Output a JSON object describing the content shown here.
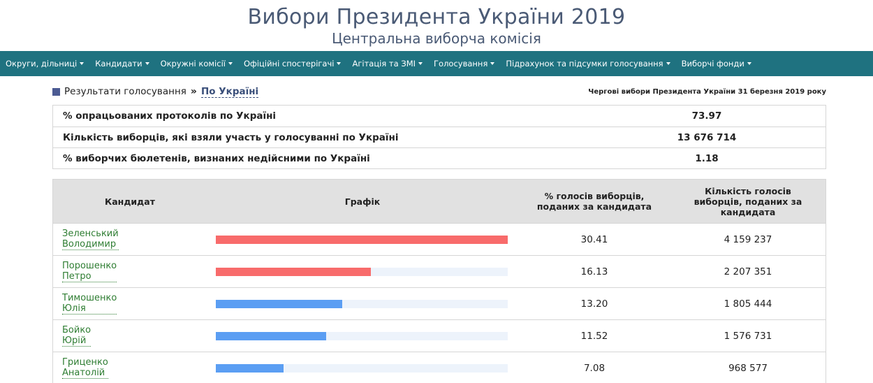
{
  "header": {
    "title": "Вибори Президента України 2019",
    "subtitle": "Центральна виборча комісія"
  },
  "nav": {
    "items": [
      "Округи, дільниці",
      "Кандидати",
      "Окружні комісії",
      "Офіційні спостерігачі",
      "Агітація та ЗМІ",
      "Голосування",
      "Підрахунок та підсумки голосування",
      "Виборчі фонди"
    ]
  },
  "breadcrumb": {
    "section": "Результати голосування",
    "separator": "»",
    "current": "По Україні",
    "election": "Чергові вибори Президента України 31 березня 2019 року"
  },
  "summary": [
    {
      "label": "% опрацьованих протоколів по Україні",
      "value": "73.97"
    },
    {
      "label": "Кількість виборців, які взяли участь у голосуванні по Україні",
      "value": "13 676 714"
    },
    {
      "label": "% виборчих бюлетенів, визнаних недійсними по Україні",
      "value": "1.18"
    }
  ],
  "results": {
    "headers": {
      "candidate": "Кандидат",
      "chart": "Графік",
      "percent": "% голосів виборців, поданих за кандидата",
      "votes": "Кількість голосів виборців, поданих за кандидата"
    },
    "colors": {
      "leading": "#f86b6b",
      "other": "#5b9ef3",
      "track": "#edf3fb"
    },
    "rows": [
      {
        "surname": "Зеленський",
        "name": "Володимир",
        "percent": "30.41",
        "votes": "4 159 237",
        "bar_fraction": 1.0,
        "bar_color": "leading"
      },
      {
        "surname": "Порошенко",
        "name": "Петро",
        "percent": "16.13",
        "votes": "2 207 351",
        "bar_fraction": 0.53,
        "bar_color": "leading"
      },
      {
        "surname": "Тимошенко",
        "name": "Юлія",
        "percent": "13.20",
        "votes": "1 805 444",
        "bar_fraction": 0.434,
        "bar_color": "other"
      },
      {
        "surname": "Бойко",
        "name": "Юрій",
        "percent": "11.52",
        "votes": "1 576 731",
        "bar_fraction": 0.379,
        "bar_color": "other"
      },
      {
        "surname": "Гриценко",
        "name": "Анатолій",
        "percent": "7.08",
        "votes": "968 577",
        "bar_fraction": 0.233,
        "bar_color": "other"
      }
    ]
  }
}
